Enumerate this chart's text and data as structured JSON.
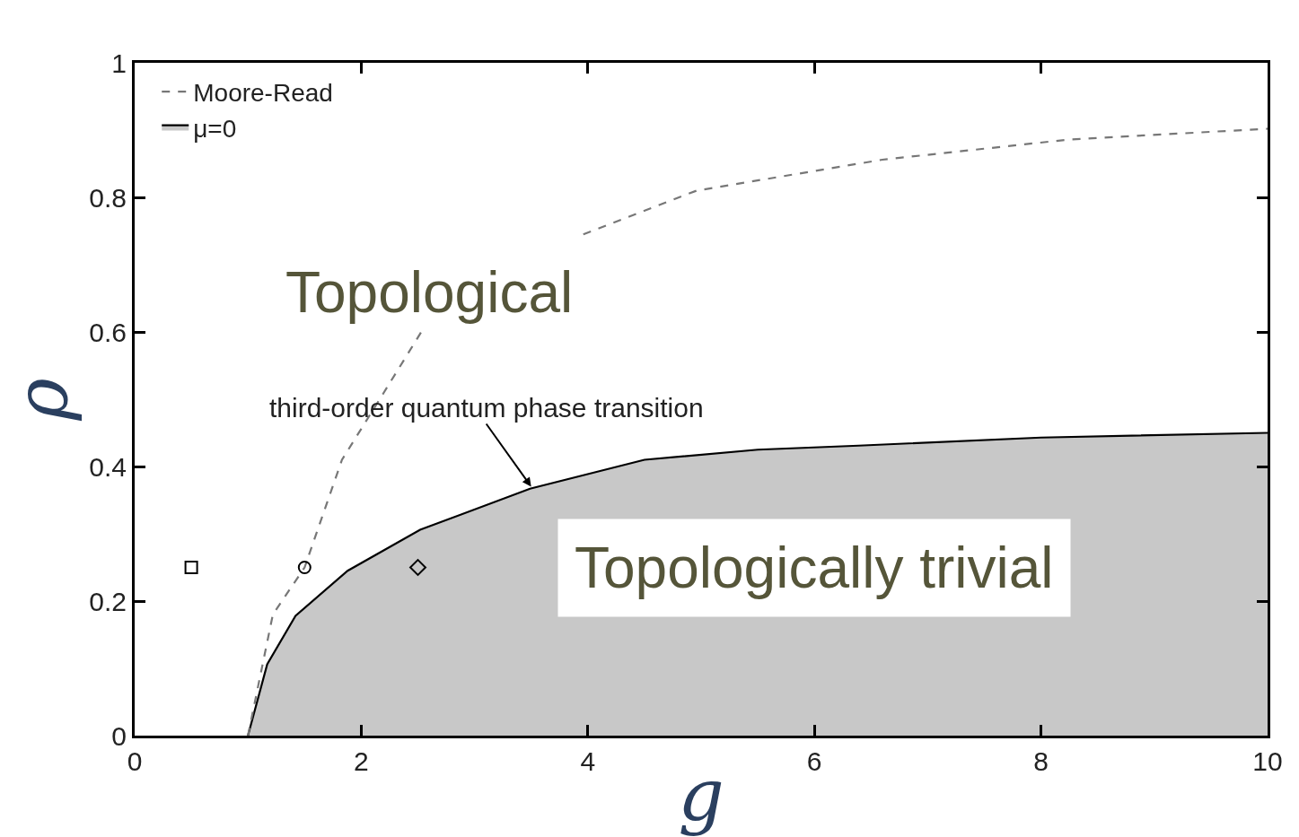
{
  "chart_data": {
    "type": "line",
    "xlabel": "g",
    "ylabel": "ρ",
    "xlim": [
      0,
      10
    ],
    "xticks": [
      0,
      2,
      4,
      6,
      8,
      10
    ],
    "ylim": [
      0,
      1
    ],
    "yticks": [
      0,
      0.2,
      0.4,
      0.6,
      0.8,
      1
    ],
    "legend": "top left",
    "series": [
      {
        "name": "Moore-Read",
        "color": "#777777",
        "line_style": "dashed",
        "marker": "none",
        "x": [
          1,
          1.22,
          1.5,
          1.83,
          2.2,
          2.53,
          3.2,
          3.96,
          4.96,
          6.6,
          8.25,
          10
        ],
        "values": [
          0,
          0.18,
          0.25,
          0.41,
          0.51,
          0.6,
          null,
          0.745,
          0.81,
          0.856,
          0.886,
          0.902
        ]
      },
      {
        "name": "μ=0",
        "type": "area",
        "color": "#000000",
        "line_style": "solid",
        "marker": "none",
        "x": [
          1,
          1.17,
          1.42,
          1.88,
          2.52,
          3.49,
          4.5,
          5.5,
          6.39,
          8,
          10
        ],
        "values": [
          0,
          0.106,
          0.178,
          0.245,
          0.306,
          0.367,
          0.41,
          0.425,
          0.431,
          0.443,
          0.45
        ]
      },
      {
        "type": "scatter",
        "color": "#000000",
        "marker": "square",
        "x": [
          0.5
        ],
        "values": [
          0.25
        ]
      },
      {
        "type": "scatter",
        "color": "#000000",
        "marker": "circle",
        "x": [
          1.5
        ],
        "values": [
          0.25
        ]
      },
      {
        "type": "scatter",
        "color": "#000000",
        "marker": "diamond",
        "x": [
          2.5
        ],
        "values": [
          0.25
        ]
      }
    ],
    "annotations": [
      {
        "text": "third-order quantum phase transition",
        "x": 3.5,
        "y": 0.37
      },
      "Topological",
      "Topologically trivial"
    ]
  }
}
